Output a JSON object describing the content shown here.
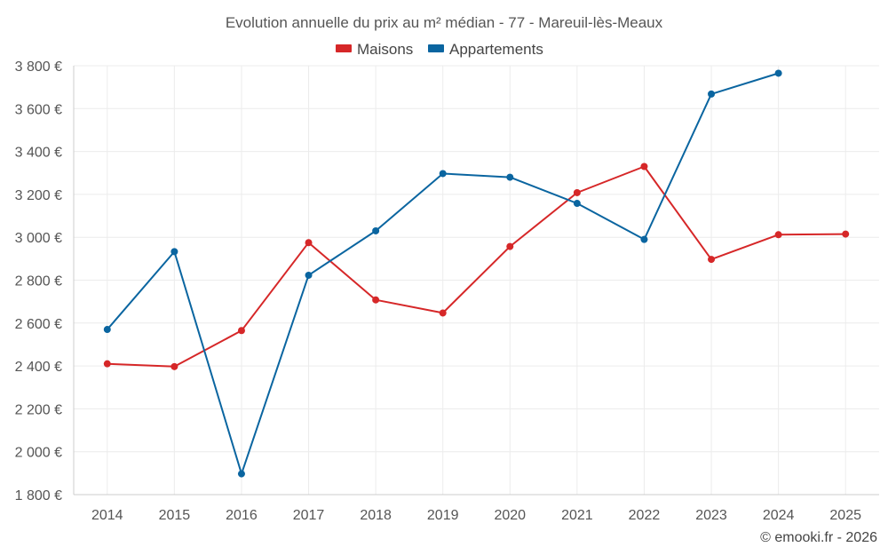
{
  "chart_data": {
    "type": "line",
    "title": "Evolution annuelle du prix au m² médian - 77 - Mareuil-lès-Meaux",
    "categories": [
      "2014",
      "2015",
      "2016",
      "2017",
      "2018",
      "2019",
      "2020",
      "2021",
      "2022",
      "2023",
      "2024",
      "2025"
    ],
    "y_ticks": [
      1800,
      2000,
      2200,
      2400,
      2600,
      2800,
      3000,
      3200,
      3400,
      3600,
      3800
    ],
    "y_tick_labels": [
      "1 800 €",
      "2 000 €",
      "2 200 €",
      "2 400 €",
      "2 600 €",
      "2 800 €",
      "3 000 €",
      "3 200 €",
      "3 400 €",
      "3 600 €",
      "3 800 €"
    ],
    "ylim": [
      1800,
      3800
    ],
    "grid": true,
    "legend_position": "top-center",
    "series": [
      {
        "name": "Maisons",
        "color": "#d62728",
        "values": [
          2410,
          2397,
          2565,
          2975,
          2708,
          2647,
          2957,
          3208,
          3330,
          2897,
          3012,
          3015
        ]
      },
      {
        "name": "Appartements",
        "color": "#0a65a0",
        "values": [
          2570,
          2933,
          1897,
          2823,
          3030,
          3297,
          3280,
          3158,
          2990,
          3668,
          3765,
          null
        ]
      }
    ]
  },
  "credit": "© emooki.fr - 2026"
}
